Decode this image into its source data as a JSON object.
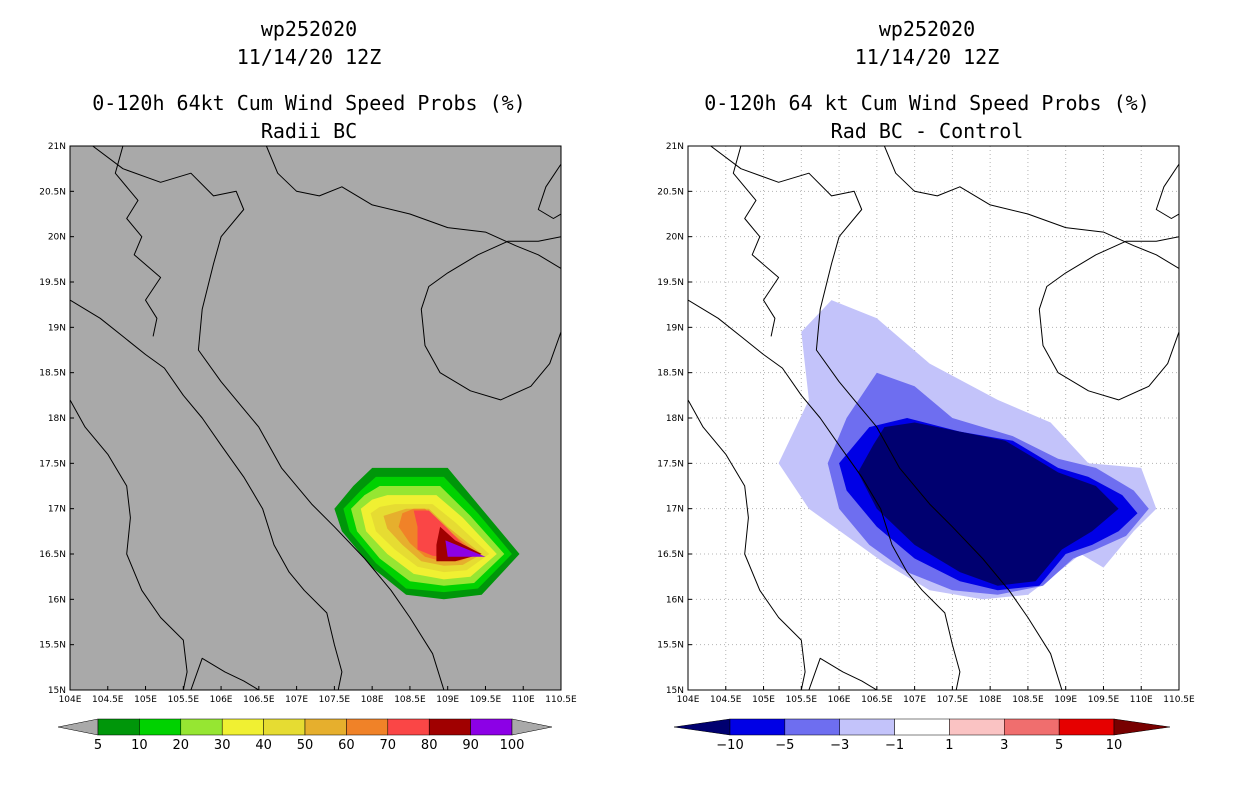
{
  "panels": [
    {
      "id": "left",
      "storm_id": "wp252020",
      "datetime": "11/14/20 12Z",
      "product": "0-120h 64kt Cum Wind Speed Probs (%)",
      "subtitle": "Radii BC",
      "background": "#a9a9a9",
      "show_grid": false,
      "colorbar": {
        "labels": [
          "5",
          "10",
          "20",
          "30",
          "40",
          "50",
          "60",
          "70",
          "80",
          "90",
          "100"
        ],
        "colors": [
          "#00960a",
          "#00d200",
          "#96e632",
          "#f0f032",
          "#e6dc32",
          "#e6af2d",
          "#f08228",
          "#fa4646",
          "#a00000",
          "#8c00e6"
        ],
        "end_color": "#a9a9a9"
      }
    },
    {
      "id": "right",
      "storm_id": "wp252020",
      "datetime": "11/14/20 12Z",
      "product": "0-120h 64 kt Cum Wind Speed Probs (%)",
      "subtitle": "Rad BC - Control",
      "background": "#ffffff",
      "show_grid": true,
      "colorbar": {
        "labels": [
          "-10",
          "-5",
          "-3",
          "-1",
          "1",
          "3",
          "5",
          "10"
        ],
        "colors": [
          "#0000e6",
          "#6e6ef0",
          "#c3c3fa",
          "#ffffff",
          "#fac3c3",
          "#f06e6e",
          "#e60000"
        ],
        "low_end_color": "#000070",
        "high_end_color": "#780000"
      }
    }
  ],
  "axes": {
    "lat_labels": [
      "21N",
      "20.5N",
      "20N",
      "19.5N",
      "19N",
      "18.5N",
      "18N",
      "17.5N",
      "17N",
      "16.5N",
      "16N",
      "15.5N",
      "15N"
    ],
    "lon_labels": [
      "104E",
      "104.5E",
      "105E",
      "105.5E",
      "106E",
      "106.5E",
      "107E",
      "107.5E",
      "108E",
      "108.5E",
      "109E",
      "109.5E",
      "110E",
      "110.5E"
    ],
    "lat_range": [
      15,
      21
    ],
    "lon_range": [
      104,
      110.5
    ]
  }
}
